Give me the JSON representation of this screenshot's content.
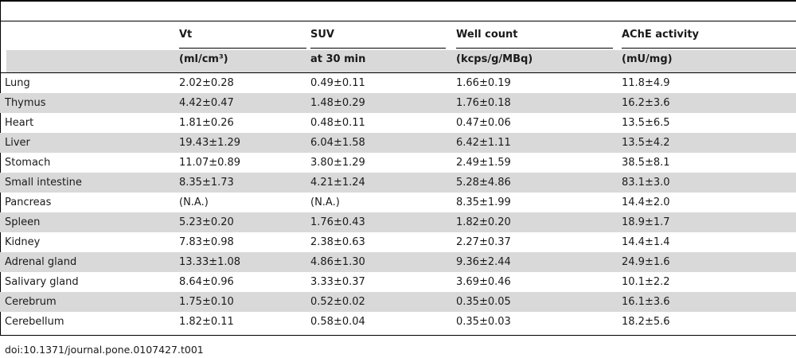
{
  "columns": [
    {
      "name": "Vt",
      "unit": "(ml/cm³)"
    },
    {
      "name": "SUV",
      "unit": "at 30 min"
    },
    {
      "name": "Well count",
      "unit": "(kcps/g/MBq)"
    },
    {
      "name": "AChE activity",
      "unit": "(mU/mg)"
    }
  ],
  "rows": [
    {
      "organ": "Lung",
      "vt": "2.02±0.28",
      "suv": "0.49±0.11",
      "well": "1.66±0.19",
      "ache": "11.8±4.9"
    },
    {
      "organ": "Thymus",
      "vt": "4.42±0.47",
      "suv": "1.48±0.29",
      "well": "1.76±0.18",
      "ache": "16.2±3.6"
    },
    {
      "organ": "Heart",
      "vt": "1.81±0.26",
      "suv": "0.48±0.11",
      "well": "0.47±0.06",
      "ache": "13.5±6.5"
    },
    {
      "organ": "Liver",
      "vt": "19.43±1.29",
      "suv": "6.04±1.58",
      "well": "6.42±1.11",
      "ache": "13.5±4.2"
    },
    {
      "organ": "Stomach",
      "vt": "11.07±0.89",
      "suv": "3.80±1.29",
      "well": "2.49±1.59",
      "ache": "38.5±8.1"
    },
    {
      "organ": "Small intestine",
      "vt": "8.35±1.73",
      "suv": "4.21±1.24",
      "well": "5.28±4.86",
      "ache": "83.1±3.0"
    },
    {
      "organ": "Pancreas",
      "vt": "(N.A.)",
      "suv": "(N.A.)",
      "well": "8.35±1.99",
      "ache": "14.4±2.0"
    },
    {
      "organ": "Spleen",
      "vt": "5.23±0.20",
      "suv": "1.76±0.43",
      "well": "1.82±0.20",
      "ache": "18.9±1.7"
    },
    {
      "organ": "Kidney",
      "vt": "7.83±0.98",
      "suv": "2.38±0.63",
      "well": "2.27±0.37",
      "ache": "14.4±1.4"
    },
    {
      "organ": "Adrenal gland",
      "vt": "13.33±1.08",
      "suv": "4.86±1.30",
      "well": "9.36±2.44",
      "ache": "24.9±1.6"
    },
    {
      "organ": "Salivary gland",
      "vt": "8.64±0.96",
      "suv": "3.33±0.37",
      "well": "3.69±0.46",
      "ache": "10.1±2.2"
    },
    {
      "organ": "Cerebrum",
      "vt": "1.75±0.10",
      "suv": "0.52±0.02",
      "well": "0.35±0.05",
      "ache": "16.1±3.6"
    },
    {
      "organ": "Cerebellum",
      "vt": "1.82±0.11",
      "suv": "0.58±0.04",
      "well": "0.35±0.03",
      "ache": "18.2±5.6"
    }
  ],
  "caption": "doi:10.1371/journal.pone.0107427.t001"
}
